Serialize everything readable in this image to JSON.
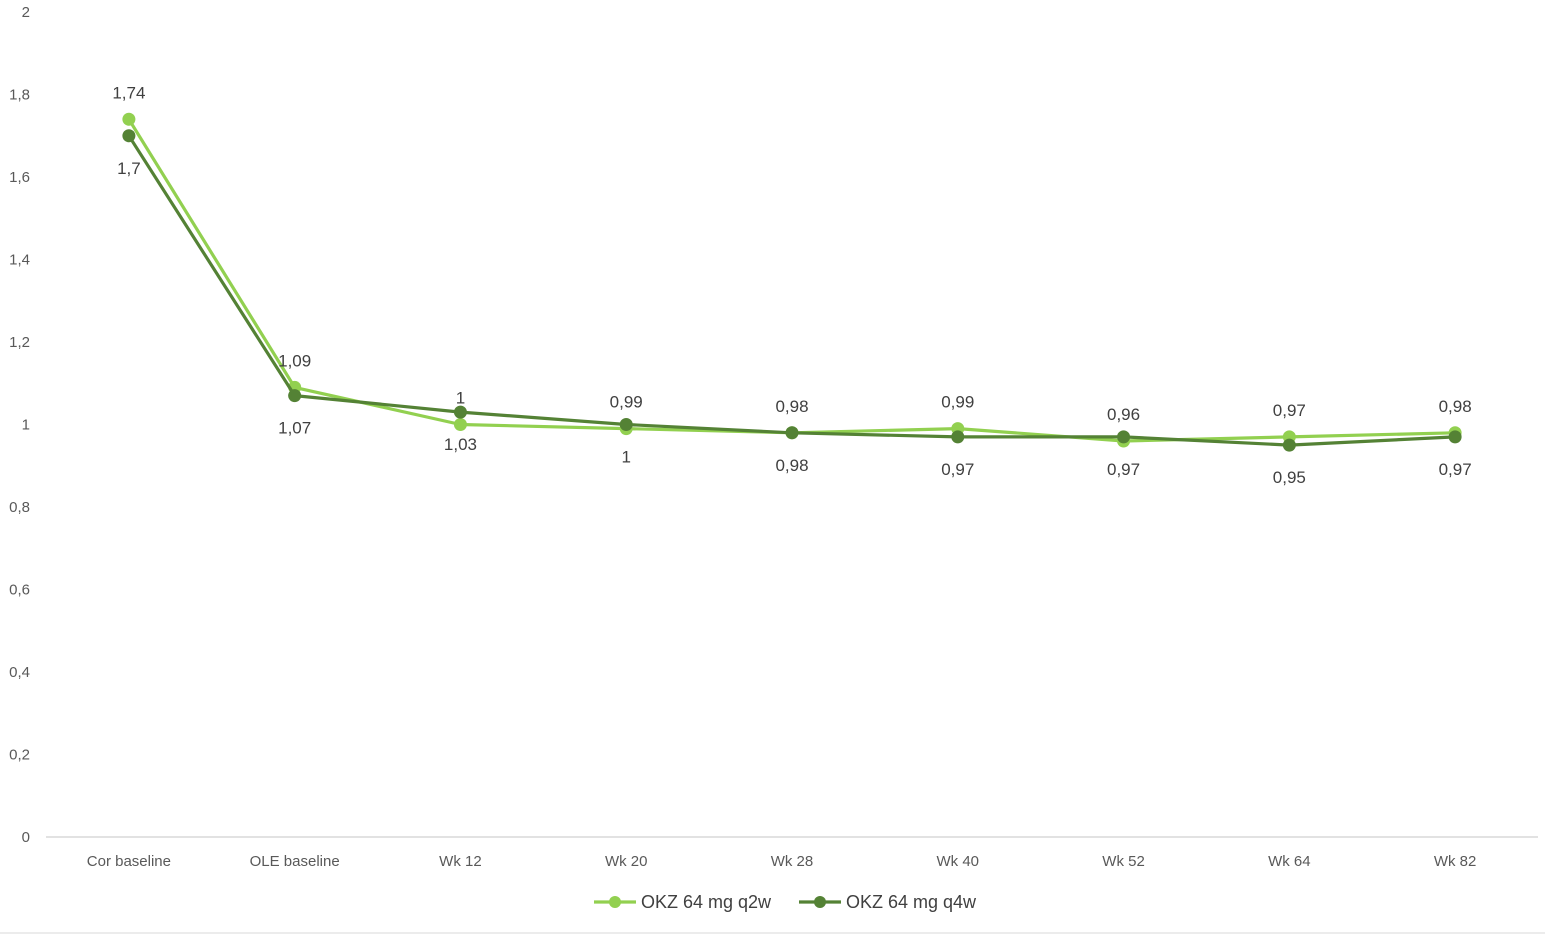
{
  "chart_data": {
    "type": "line",
    "title": "",
    "xlabel": "",
    "ylabel": "",
    "categories": [
      "Cor baseline",
      "OLE baseline",
      "Wk 12",
      "Wk 20",
      "Wk 28",
      "Wk 40",
      "Wk 52",
      "Wk 64",
      "Wk 82"
    ],
    "ylim": [
      0,
      2
    ],
    "yticks": [
      0,
      0.2,
      0.4,
      0.6,
      0.8,
      1,
      1.2,
      1.4,
      1.6,
      1.8,
      2
    ],
    "ytick_labels": [
      "0",
      "0,2",
      "0,4",
      "0,6",
      "0,8",
      "1",
      "1,2",
      "1,4",
      "1,6",
      "1,8",
      "2"
    ],
    "grid": false,
    "legend_position": "bottom",
    "series": [
      {
        "name": "OKZ 64 mg q2w",
        "color": "#92d050",
        "values": [
          1.74,
          1.09,
          1.0,
          0.99,
          0.98,
          0.99,
          0.96,
          0.97,
          0.98
        ],
        "labels": [
          "1,74",
          "1,09",
          "1",
          "0,99",
          "0,98",
          "0,99",
          "0,96",
          "0,97",
          "0,98"
        ],
        "label_position": [
          "above",
          "above",
          "above",
          "above",
          "above",
          "above",
          "above",
          "above",
          "above"
        ]
      },
      {
        "name": "OKZ 64 mg q4w",
        "color": "#548235",
        "values": [
          1.7,
          1.07,
          1.03,
          1.0,
          0.98,
          0.97,
          0.97,
          0.95,
          0.97
        ],
        "labels": [
          "1,7",
          "1,07",
          "1,03",
          "1",
          "0,98",
          "0,97",
          "0,97",
          "0,95",
          "0,97"
        ],
        "label_position": [
          "below",
          "below",
          "below",
          "below",
          "below",
          "below",
          "below",
          "below",
          "below"
        ]
      }
    ]
  }
}
